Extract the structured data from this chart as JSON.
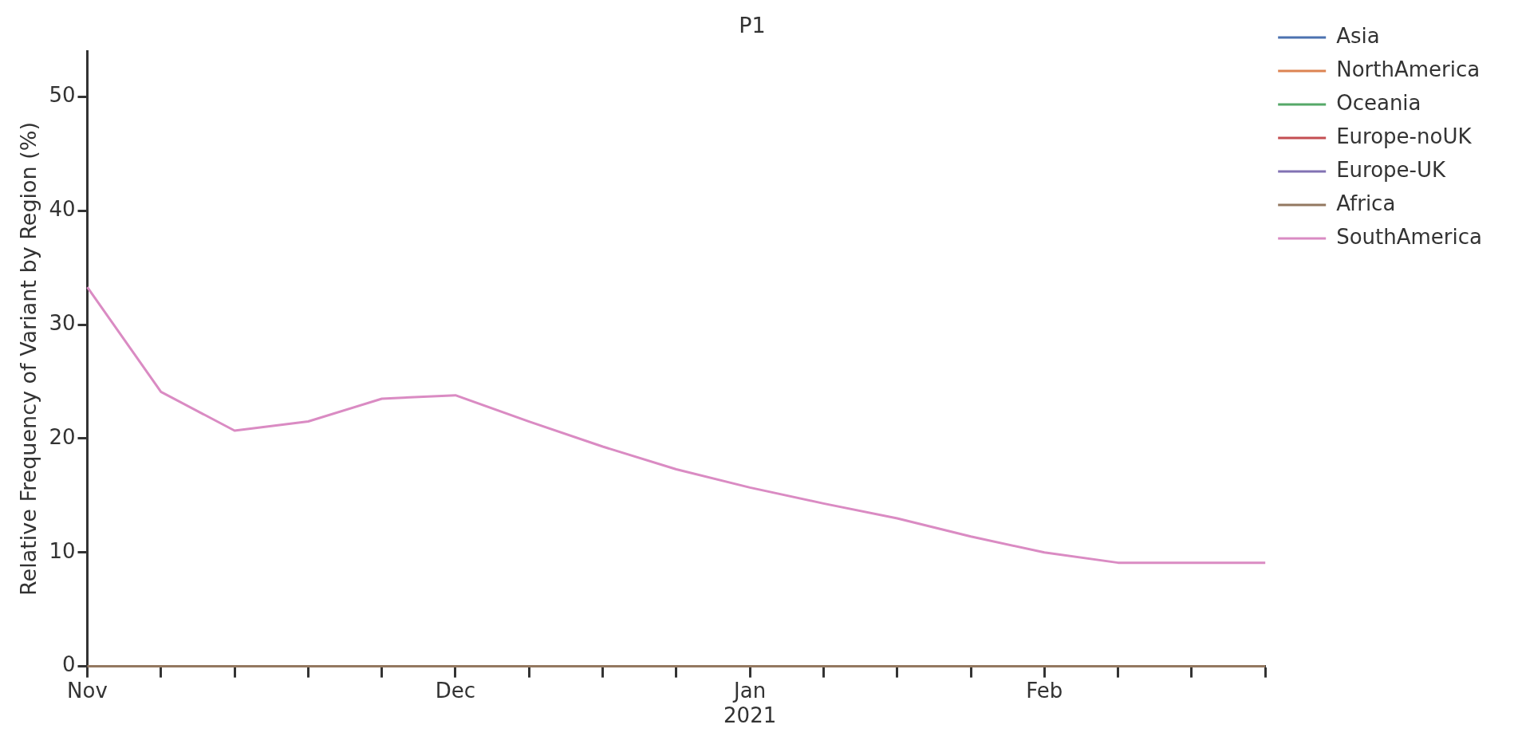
{
  "chart_data": {
    "type": "line",
    "title": "P1",
    "ylabel": "Relative Frequency of Variant by Region (%)",
    "x": [
      "2020-11-02",
      "2020-11-09",
      "2020-11-16",
      "2020-11-23",
      "2020-11-30",
      "2020-12-07",
      "2020-12-14",
      "2020-12-21",
      "2020-12-28",
      "2021-01-04",
      "2021-01-11",
      "2021-01-18",
      "2021-01-25",
      "2021-02-01",
      "2021-02-08",
      "2021-02-15",
      "2021-02-22"
    ],
    "xlim": [
      "2020-11-02",
      "2021-02-22"
    ],
    "xticks": [
      {
        "value": "2020-11-02",
        "label": "Nov"
      },
      {
        "value": "2020-11-09",
        "label": null
      },
      {
        "value": "2020-11-16",
        "label": null
      },
      {
        "value": "2020-11-23",
        "label": null
      },
      {
        "value": "2020-11-30",
        "label": null
      },
      {
        "value": "2020-12-07",
        "label": "Dec"
      },
      {
        "value": "2020-12-14",
        "label": null
      },
      {
        "value": "2020-12-21",
        "label": null
      },
      {
        "value": "2020-12-28",
        "label": null
      },
      {
        "value": "2021-01-04",
        "label": "Jan\n2021"
      },
      {
        "value": "2021-01-11",
        "label": null
      },
      {
        "value": "2021-01-18",
        "label": null
      },
      {
        "value": "2021-01-25",
        "label": null
      },
      {
        "value": "2021-02-01",
        "label": "Feb"
      },
      {
        "value": "2021-02-08",
        "label": null
      },
      {
        "value": "2021-02-15",
        "label": null
      },
      {
        "value": "2021-02-22",
        "label": null
      }
    ],
    "ylim": [
      0,
      54
    ],
    "yticks": [
      0,
      10,
      20,
      30,
      40,
      50
    ],
    "grid": false,
    "legend": "top right",
    "marker": "none",
    "line_style": "solid",
    "series": [
      {
        "name": "Asia",
        "color": "#4c72b0",
        "values": [
          null,
          null,
          null,
          null,
          null,
          null,
          null,
          null,
          null,
          null,
          null,
          null,
          null,
          null,
          null,
          null,
          null
        ]
      },
      {
        "name": "NorthAmerica",
        "color": "#dd8452",
        "values": [
          null,
          null,
          null,
          null,
          null,
          null,
          null,
          null,
          null,
          null,
          null,
          null,
          null,
          null,
          null,
          null,
          null
        ]
      },
      {
        "name": "Oceania",
        "color": "#55a868",
        "values": [
          null,
          null,
          null,
          null,
          null,
          null,
          null,
          null,
          null,
          null,
          null,
          null,
          null,
          null,
          null,
          null,
          null
        ]
      },
      {
        "name": "Europe-noUK",
        "color": "#c44e52",
        "values": [
          null,
          null,
          null,
          null,
          null,
          null,
          null,
          null,
          null,
          null,
          null,
          null,
          null,
          null,
          null,
          null,
          null
        ]
      },
      {
        "name": "Europe-UK",
        "color": "#8172b3",
        "values": [
          null,
          null,
          null,
          null,
          null,
          null,
          null,
          null,
          null,
          null,
          null,
          null,
          null,
          null,
          null,
          null,
          null
        ]
      },
      {
        "name": "Africa",
        "color": "#937860",
        "values": [
          0,
          0,
          0,
          0,
          0,
          0,
          0,
          0,
          0,
          0,
          0,
          0,
          0,
          0,
          0,
          0,
          0
        ]
      },
      {
        "name": "SouthAmerica",
        "color": "#da8bc3",
        "values": [
          33.3,
          24.1,
          20.7,
          21.5,
          23.5,
          23.8,
          21.5,
          19.3,
          17.3,
          15.7,
          14.3,
          13.0,
          11.4,
          10.0,
          9.1,
          9.1,
          9.1
        ]
      }
    ]
  }
}
